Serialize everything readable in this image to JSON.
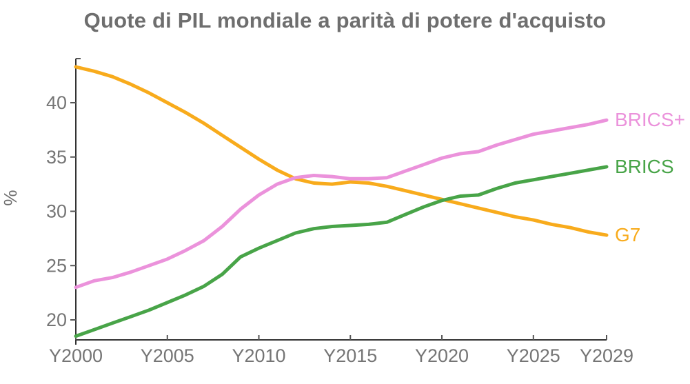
{
  "title": "Quote di PIL mondiale a parità di potere d'acquisto",
  "colors": {
    "background": "#FFFFFF",
    "title_text": "#6E6E6E",
    "tick_text": "#757575",
    "axis": "#333333",
    "tick_mark": "#555555"
  },
  "chart_data": {
    "type": "line",
    "title": "Quote di PIL mondiale a parità di potere d'acquisto",
    "xlabel": "",
    "ylabel": "%",
    "grid": false,
    "legend_position": "right-edge-line-end-labels",
    "xlim": [
      2000,
      2029
    ],
    "ylim": [
      18.2,
      44.1
    ],
    "y_ticks": [
      20,
      25,
      30,
      35,
      40
    ],
    "x_tick_years": [
      2000,
      2005,
      2010,
      2015,
      2020,
      2025,
      2029
    ],
    "x_tick_labels": [
      "Y2000",
      "Y2005",
      "Y2010",
      "Y2015",
      "Y2020",
      "Y2025",
      "Y2029"
    ],
    "x": [
      2000,
      2001,
      2002,
      2003,
      2004,
      2005,
      2006,
      2007,
      2008,
      2009,
      2010,
      2011,
      2012,
      2013,
      2014,
      2015,
      2016,
      2017,
      2018,
      2019,
      2020,
      2021,
      2022,
      2023,
      2024,
      2025,
      2026,
      2027,
      2028,
      2029
    ],
    "series": [
      {
        "name": "BRICS+",
        "color": "#EB92DB",
        "values": [
          23.0,
          23.6,
          23.9,
          24.4,
          25.0,
          25.6,
          26.4,
          27.3,
          28.6,
          30.2,
          31.5,
          32.5,
          33.1,
          33.3,
          33.2,
          33.0,
          33.0,
          33.1,
          33.7,
          34.3,
          34.9,
          35.3,
          35.5,
          36.1,
          36.6,
          37.1,
          37.4,
          37.7,
          38.0,
          38.4
        ]
      },
      {
        "name": "BRICS",
        "color": "#48A448",
        "values": [
          18.5,
          19.1,
          19.7,
          20.3,
          20.9,
          21.6,
          22.3,
          23.1,
          24.2,
          25.8,
          26.6,
          27.3,
          28.0,
          28.4,
          28.6,
          28.7,
          28.8,
          29.0,
          29.7,
          30.4,
          31.0,
          31.4,
          31.5,
          32.1,
          32.6,
          32.9,
          33.2,
          33.5,
          33.8,
          34.1
        ]
      },
      {
        "name": "G7",
        "color": "#F8AB1C",
        "values": [
          43.3,
          42.9,
          42.4,
          41.7,
          40.9,
          40.0,
          39.1,
          38.1,
          37.0,
          35.9,
          34.8,
          33.8,
          33.0,
          32.6,
          32.5,
          32.7,
          32.6,
          32.3,
          31.9,
          31.5,
          31.1,
          30.7,
          30.3,
          29.9,
          29.5,
          29.2,
          28.8,
          28.5,
          28.1,
          27.8
        ]
      }
    ]
  }
}
